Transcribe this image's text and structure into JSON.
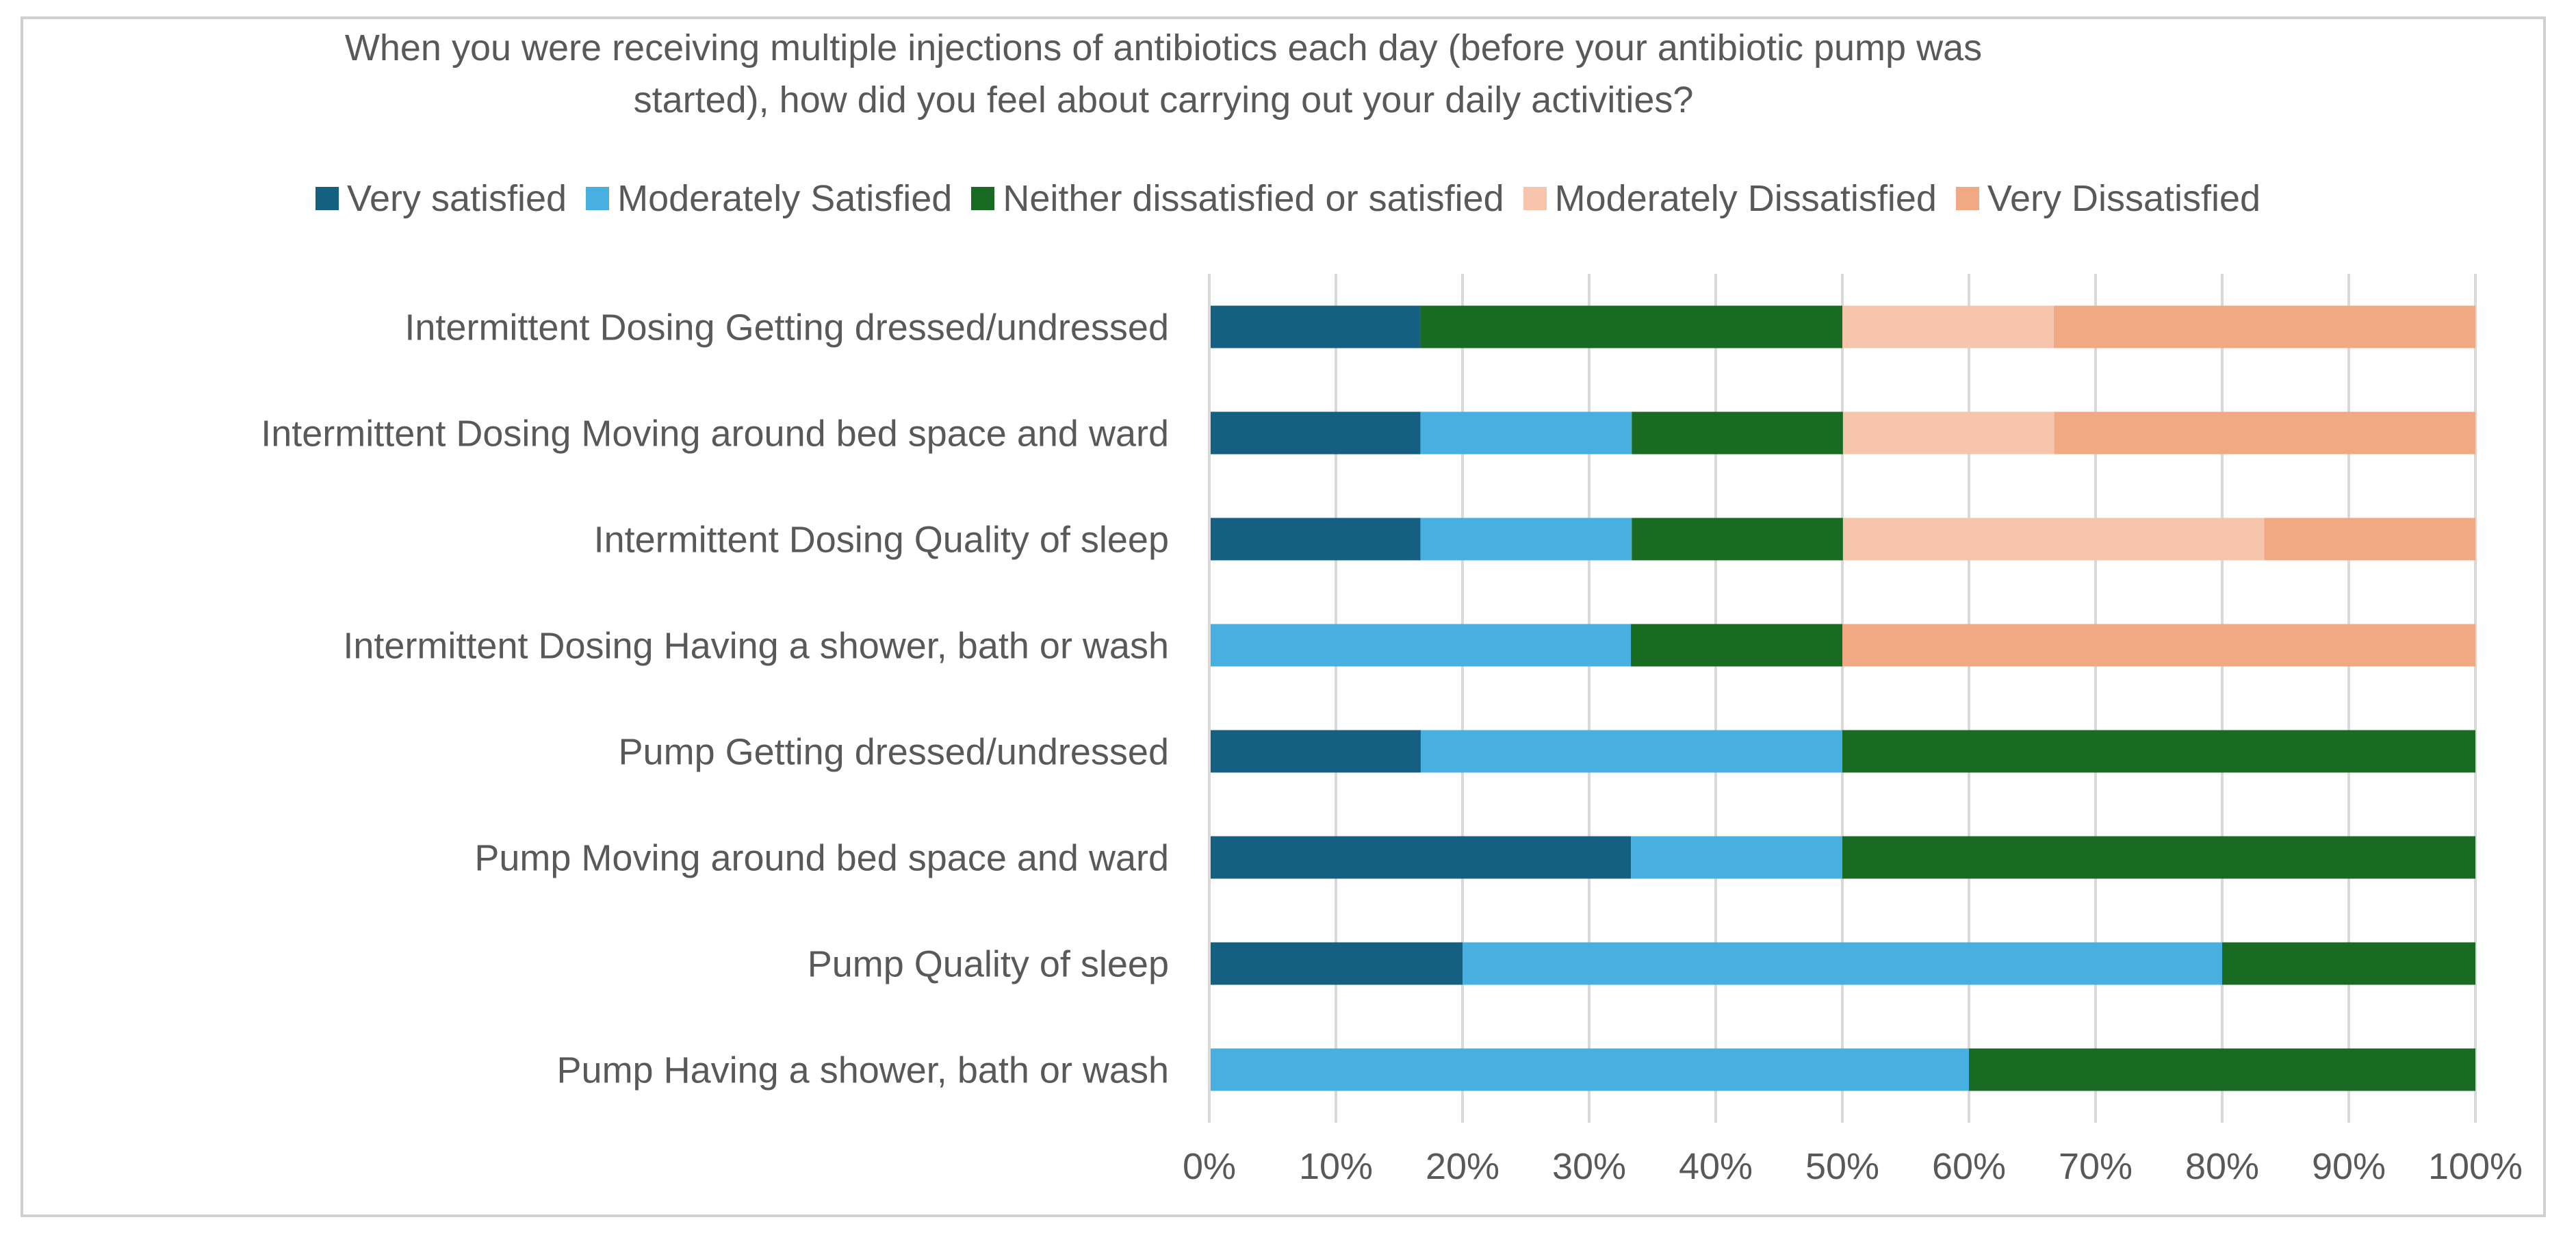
{
  "chart_data": {
    "type": "bar",
    "orientation": "horizontal",
    "stacked": "percent",
    "title": "When you were receiving multiple injections of antibiotics each day (before your antibiotic pump was started), how did you feel about carrying out your daily activities?",
    "title_lines": [
      "When you were receiving multiple injections of antibiotics each day (before your antibiotic pump was",
      "started), how did you feel about carrying out your daily activities?"
    ],
    "categories": [
      "Intermittent Dosing Getting dressed/undressed",
      "Intermittent Dosing Moving around bed space and ward",
      "Intermittent Dosing Quality of sleep",
      "Intermittent Dosing Having a shower, bath or wash",
      "Pump Getting dressed/undressed",
      "Pump Moving around bed space and ward",
      "Pump Quality of sleep",
      "Pump Having a shower, bath or wash"
    ],
    "series": [
      {
        "name": "Very satisfied",
        "color": "#156082",
        "values": [
          16.7,
          16.7,
          16.7,
          0,
          16.7,
          33.3,
          20,
          0
        ]
      },
      {
        "name": "Moderately Satisfied",
        "color": "#47b0e0",
        "values": [
          0,
          16.7,
          16.7,
          33.3,
          33.3,
          16.7,
          60,
          60
        ]
      },
      {
        "name": "Neither dissatisfied or satisfied",
        "color": "#196b24",
        "values": [
          33.3,
          16.7,
          16.7,
          16.7,
          50,
          50,
          20,
          40
        ]
      },
      {
        "name": "Moderately Dissatisfied",
        "color": "#f6c5ac",
        "values": [
          16.7,
          16.7,
          33.3,
          0,
          0,
          0,
          0,
          0
        ]
      },
      {
        "name": "Very Dissatisfied",
        "color": "#f1a983",
        "values": [
          33.3,
          33.3,
          16.7,
          50,
          0,
          0,
          0,
          0
        ]
      }
    ],
    "x_ticks": [
      "0%",
      "10%",
      "20%",
      "30%",
      "40%",
      "50%",
      "60%",
      "70%",
      "80%",
      "90%",
      "100%"
    ],
    "xlim": [
      0,
      100
    ],
    "grid": true,
    "legend_position": "top"
  }
}
